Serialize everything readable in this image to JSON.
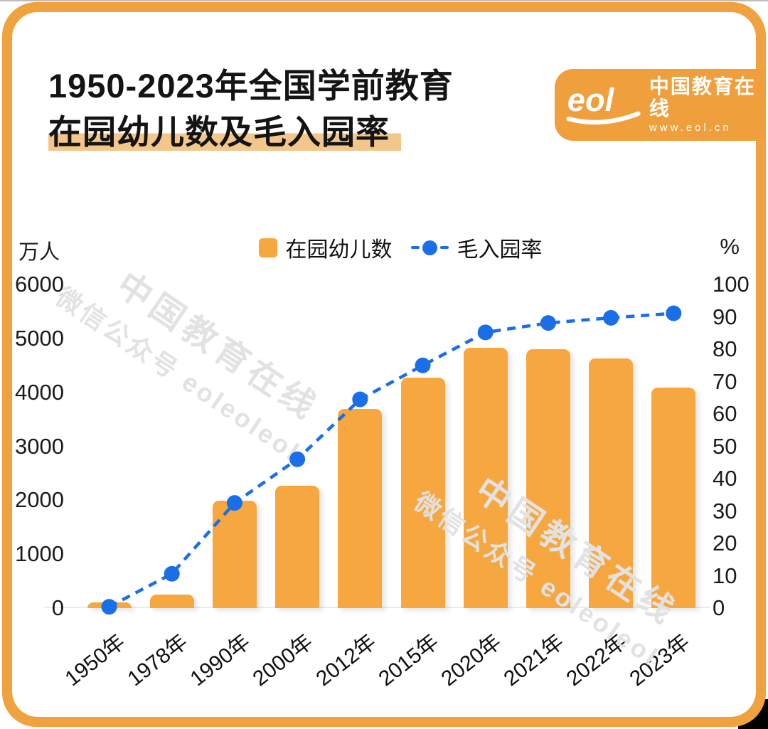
{
  "page": {
    "frame_color": "#EFA23E",
    "card_color": "#ffffff"
  },
  "header": {
    "title_line1": "1950-2023年全国学前教育",
    "title_line2": "在园幼儿数及毛入园率",
    "highlight_color": "#F3C78C"
  },
  "logo": {
    "script": "eol",
    "name": "中国教育在线",
    "url": "www.eol.cn",
    "bg_color": "#EFA03C"
  },
  "watermark": {
    "line1": "中国教育在线",
    "line2": "微信公众号 eoleoleol"
  },
  "chart_data": {
    "type": "combo",
    "title": "1950-2023年全国学前教育在园幼儿数及毛入园率",
    "categories": [
      "1950年",
      "1978年",
      "1990年",
      "2000年",
      "2012年",
      "2015年",
      "2020年",
      "2021年",
      "2022年",
      "2023年"
    ],
    "series": [
      {
        "name": "在园幼儿数",
        "type": "bar",
        "axis": "left",
        "unit": "万人",
        "color": "#F7A73F",
        "values": [
          14,
          250,
          1990,
          2270,
          3690,
          4270,
          4820,
          4800,
          4630,
          4090
        ]
      },
      {
        "name": "毛入园率",
        "type": "line",
        "axis": "right",
        "unit": "%",
        "color": "#1A6FE8",
        "values": [
          0.4,
          10.6,
          32.5,
          46,
          64.5,
          75,
          85.2,
          88.1,
          89.7,
          91.1
        ]
      }
    ],
    "left_axis": {
      "unit": "万人",
      "ticks": [
        6000,
        5000,
        4000,
        3000,
        2000,
        1000,
        0
      ],
      "range": [
        0,
        6000
      ]
    },
    "right_axis": {
      "unit": "%",
      "ticks": [
        100,
        90,
        80,
        70,
        60,
        50,
        40,
        30,
        20,
        10,
        0
      ],
      "range": [
        0,
        100
      ]
    },
    "legend_position": "top-center",
    "grid": false,
    "line_style": "dashed"
  }
}
